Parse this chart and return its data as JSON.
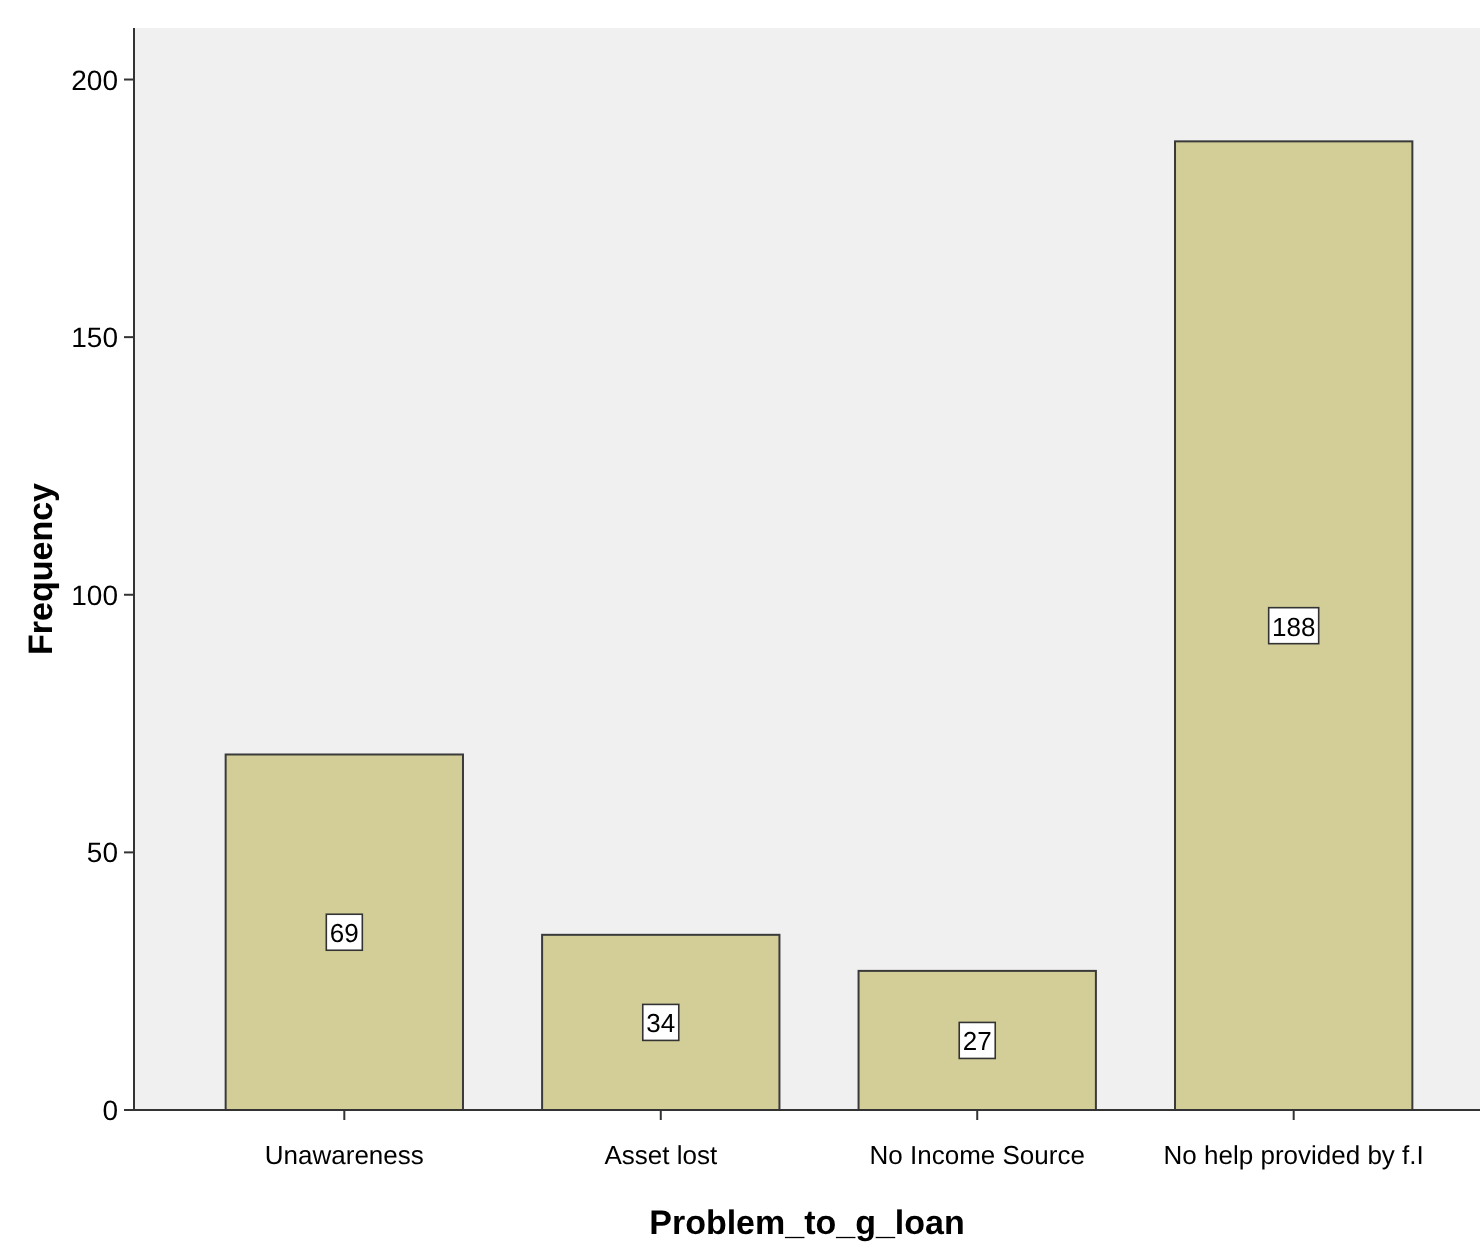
{
  "chart_data": {
    "type": "bar",
    "xlabel": "Problem_to_g_loan",
    "ylabel": "Frequency",
    "categories": [
      "Unawareness",
      "Asset lost",
      "No Income Source",
      "No help provided by f.I"
    ],
    "values": [
      69,
      34,
      27,
      188
    ],
    "color": "#d3ce97",
    "ylim": [
      0,
      210
    ],
    "yticks": [
      0,
      50,
      100,
      150,
      200
    ],
    "grid": false,
    "data_labels": true
  }
}
